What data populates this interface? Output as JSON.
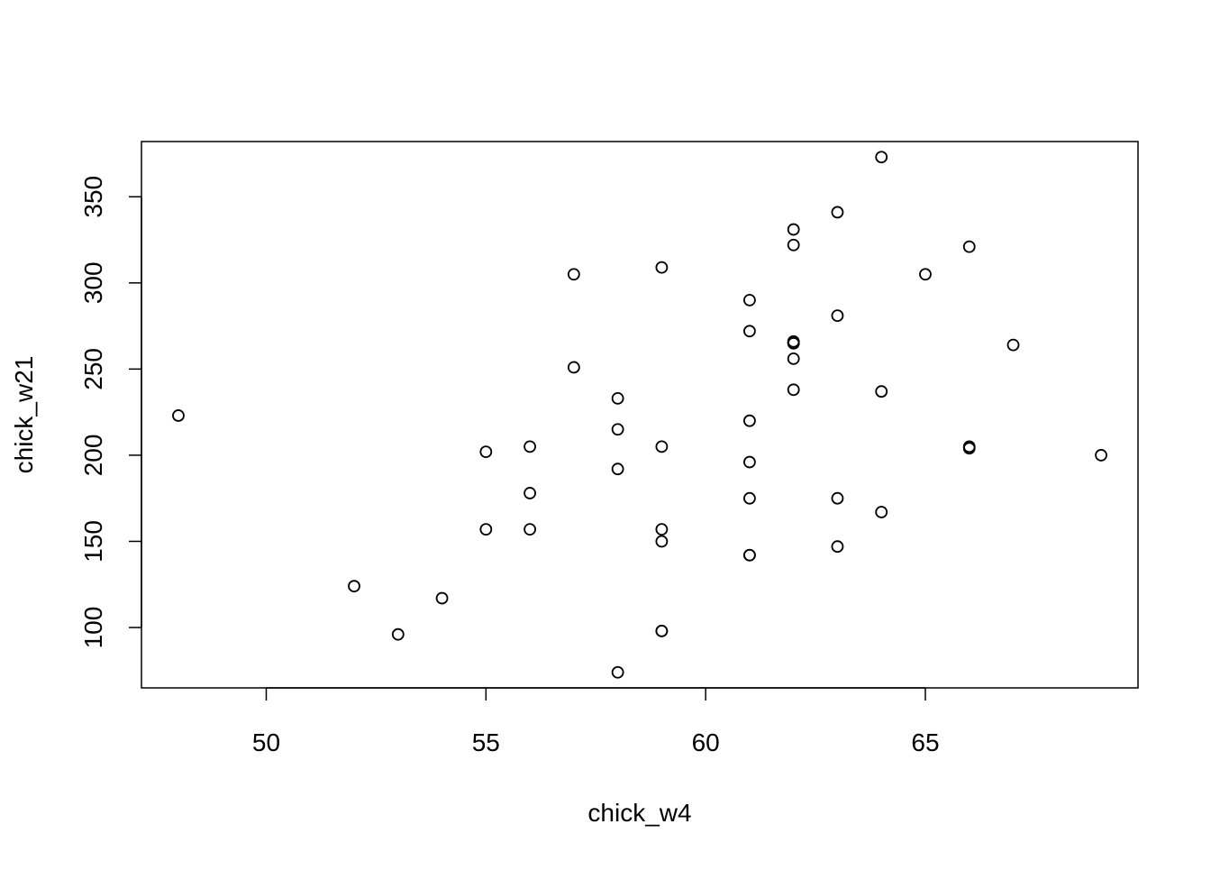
{
  "chart_data": {
    "type": "scatter",
    "title": "",
    "xlabel": "chick_w4",
    "ylabel": "chick_w21",
    "xlim": [
      47.16,
      69.84
    ],
    "ylim": [
      64.96,
      382.04
    ],
    "x_ticks": [
      50,
      55,
      60,
      65
    ],
    "y_ticks": [
      100,
      150,
      200,
      250,
      300,
      350
    ],
    "marker": "open-circle",
    "grid": false,
    "legend": "none",
    "colors": {
      "points": "#000000",
      "frame": "#000000",
      "background": "#ffffff"
    },
    "series": [
      {
        "x": [
          48,
          52,
          53,
          54,
          55,
          55,
          56,
          56,
          56,
          57,
          57,
          58,
          58,
          58,
          58,
          59,
          59,
          59,
          59,
          59,
          59,
          61,
          61,
          61,
          61,
          61,
          61,
          61,
          62,
          62,
          62,
          62,
          62,
          62,
          62,
          63,
          63,
          63,
          63,
          64,
          64,
          64,
          65,
          66,
          66,
          66,
          67,
          69
        ],
        "y": [
          223,
          124,
          96,
          117,
          202,
          157,
          205,
          178,
          157,
          305,
          251,
          233,
          215,
          192,
          74,
          309,
          205,
          157,
          150,
          98,
          98,
          290,
          272,
          220,
          196,
          175,
          142,
          142,
          331,
          322,
          266,
          265,
          256,
          238,
          265,
          341,
          281,
          175,
          147,
          373,
          237,
          167,
          305,
          321,
          205,
          204,
          264,
          200
        ]
      }
    ]
  }
}
